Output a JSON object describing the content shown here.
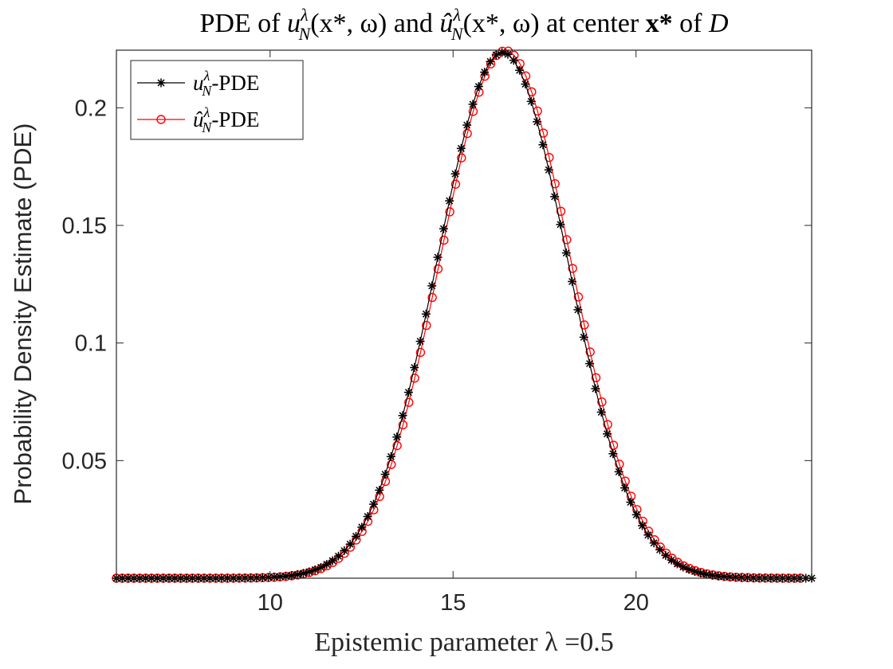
{
  "chart_data": {
    "type": "line",
    "title": "PDE of u_N^λ(x*, ω) and û_N^λ(x*, ω) at center x* of D",
    "title_parts": {
      "pre": "PDE of ",
      "u1": "u",
      "sup1": "λ",
      "sub1": "N",
      "args1": "(x*, ω)",
      "mid": " and ",
      "u2": "û",
      "sup2": "λ",
      "sub2": "N",
      "args2": "(x*, ω)",
      "post1": " at center ",
      "x": "x*",
      "post2": " of ",
      "D": "D"
    },
    "xlabel": "Epistemic parameter λ =0.5",
    "ylabel": "Probability Density Estimate (PDE)",
    "xlim": [
      5.8,
      24.8
    ],
    "ylim": [
      0,
      0.2245
    ],
    "xticks": [
      10,
      15,
      20
    ],
    "xtick_labels": [
      "10",
      "15",
      "20"
    ],
    "yticks": [
      0.05,
      0.1,
      0.15,
      0.2
    ],
    "ytick_labels": [
      "0.05",
      "0.1",
      "0.15",
      "0.2"
    ],
    "grid": false,
    "legend_position": "top-left",
    "legend": [
      {
        "label": "u_N^λ-PDE",
        "base": "u",
        "sup": "λ",
        "sub": "N",
        "suffix": "-PDE",
        "marker": "asterisk",
        "color": "#000000"
      },
      {
        "label": "û_N^λ-PDE",
        "base": "û",
        "sup": "λ",
        "sub": "N",
        "suffix": "-PDE",
        "marker": "circle",
        "color": "#ff0000"
      }
    ],
    "series": [
      {
        "name": "u_N^λ-PDE",
        "color": "#000000",
        "marker": "asterisk",
        "mean": 16.35,
        "std": 1.78,
        "peak": 0.2235,
        "x_start": 5.8,
        "x_end": 24.8,
        "n_points": 120
      },
      {
        "name": "û_N^λ-PDE",
        "color": "#ff0000",
        "marker": "circle",
        "mean": 16.43,
        "std": 1.78,
        "peak": 0.2243,
        "x_start": 5.8,
        "x_end": 24.5,
        "n_points": 118
      }
    ]
  }
}
